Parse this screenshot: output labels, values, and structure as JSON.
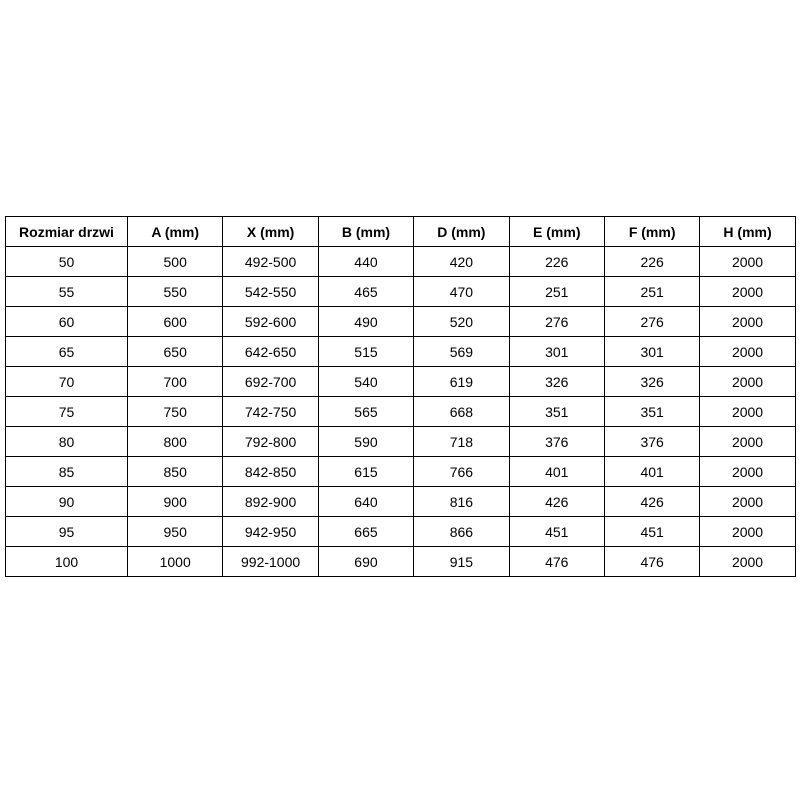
{
  "page": {
    "background": "#ffffff",
    "text_color": "#000000",
    "border_color": "#000000"
  },
  "table": {
    "columns": [
      "Rozmiar drzwi",
      "A (mm)",
      "X (mm)",
      "B (mm)",
      "D (mm)",
      "E (mm)",
      "F (mm)",
      "H (mm)"
    ],
    "rows": [
      [
        "50",
        "500",
        "492-500",
        "440",
        "420",
        "226",
        "226",
        "2000"
      ],
      [
        "55",
        "550",
        "542-550",
        "465",
        "470",
        "251",
        "251",
        "2000"
      ],
      [
        "60",
        "600",
        "592-600",
        "490",
        "520",
        "276",
        "276",
        "2000"
      ],
      [
        "65",
        "650",
        "642-650",
        "515",
        "569",
        "301",
        "301",
        "2000"
      ],
      [
        "70",
        "700",
        "692-700",
        "540",
        "619",
        "326",
        "326",
        "2000"
      ],
      [
        "75",
        "750",
        "742-750",
        "565",
        "668",
        "351",
        "351",
        "2000"
      ],
      [
        "80",
        "800",
        "792-800",
        "590",
        "718",
        "376",
        "376",
        "2000"
      ],
      [
        "85",
        "850",
        "842-850",
        "615",
        "766",
        "401",
        "401",
        "2000"
      ],
      [
        "90",
        "900",
        "892-900",
        "640",
        "816",
        "426",
        "426",
        "2000"
      ],
      [
        "95",
        "950",
        "942-950",
        "665",
        "866",
        "451",
        "451",
        "2000"
      ],
      [
        "100",
        "1000",
        "992-1000",
        "690",
        "915",
        "476",
        "476",
        "2000"
      ]
    ]
  },
  "chart_data": {
    "type": "table",
    "title": "",
    "columns": [
      "Rozmiar drzwi",
      "A (mm)",
      "X (mm)",
      "B (mm)",
      "D (mm)",
      "E (mm)",
      "F (mm)",
      "H (mm)"
    ],
    "rows": [
      [
        "50",
        "500",
        "492-500",
        "440",
        "420",
        "226",
        "226",
        "2000"
      ],
      [
        "55",
        "550",
        "542-550",
        "465",
        "470",
        "251",
        "251",
        "2000"
      ],
      [
        "60",
        "600",
        "592-600",
        "490",
        "520",
        "276",
        "276",
        "2000"
      ],
      [
        "65",
        "650",
        "642-650",
        "515",
        "569",
        "301",
        "301",
        "2000"
      ],
      [
        "70",
        "700",
        "692-700",
        "540",
        "619",
        "326",
        "326",
        "2000"
      ],
      [
        "75",
        "750",
        "742-750",
        "565",
        "668",
        "351",
        "351",
        "2000"
      ],
      [
        "80",
        "800",
        "792-800",
        "590",
        "718",
        "376",
        "376",
        "2000"
      ],
      [
        "85",
        "850",
        "842-850",
        "615",
        "766",
        "401",
        "401",
        "2000"
      ],
      [
        "90",
        "900",
        "892-900",
        "640",
        "816",
        "426",
        "426",
        "2000"
      ],
      [
        "95",
        "950",
        "942-950",
        "665",
        "866",
        "451",
        "451",
        "2000"
      ],
      [
        "100",
        "1000",
        "992-1000",
        "690",
        "915",
        "476",
        "476",
        "2000"
      ]
    ]
  }
}
